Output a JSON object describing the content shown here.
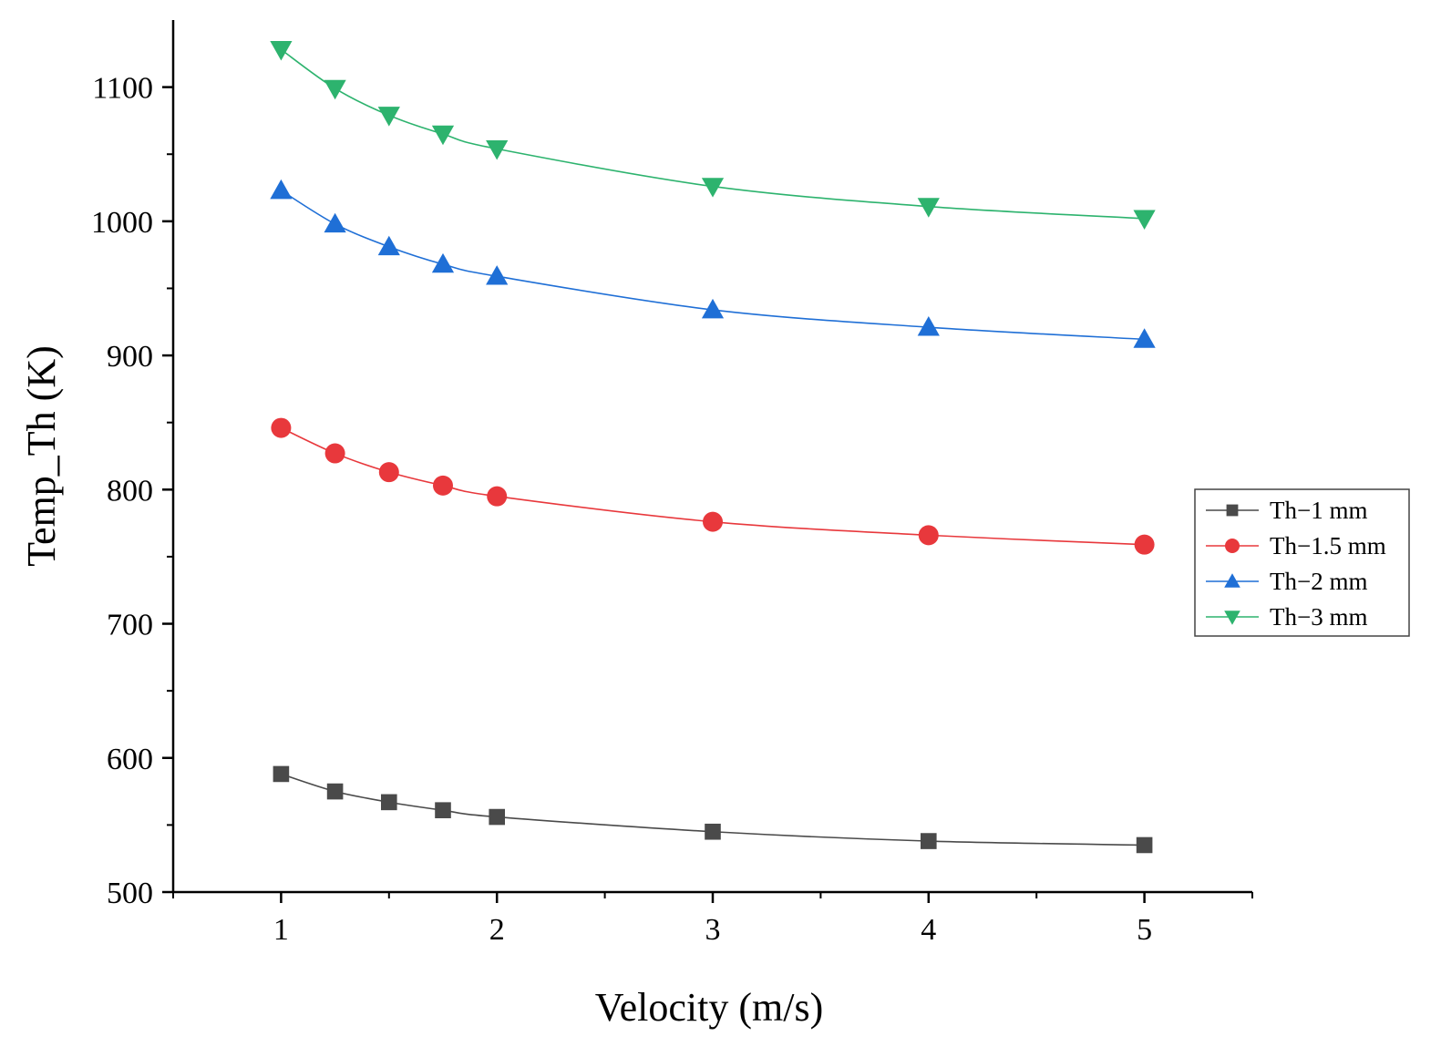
{
  "chart_data": {
    "type": "line",
    "title": "",
    "xlabel": "Velocity (m/s)",
    "ylabel": "Temp_Th (K)",
    "xlim": [
      0.5,
      5.5
    ],
    "ylim": [
      500,
      1150
    ],
    "x_ticks": [
      1,
      2,
      3,
      4,
      5
    ],
    "y_ticks": [
      500,
      600,
      700,
      800,
      900,
      1000,
      1100
    ],
    "grid": false,
    "legend_position": "right",
    "x": [
      1,
      1.25,
      1.5,
      1.75,
      2,
      3,
      4,
      5
    ],
    "series": [
      {
        "name": "Th−1 mm",
        "marker": "square",
        "color": "#4a4a4a",
        "values": [
          588,
          575,
          567,
          561,
          556,
          545,
          538,
          535
        ]
      },
      {
        "name": "Th−1.5 mm",
        "marker": "circle",
        "color": "#e8383c",
        "values": [
          846,
          827,
          813,
          803,
          795,
          776,
          766,
          759
        ]
      },
      {
        "name": "Th−2 mm",
        "marker": "triangle-up",
        "color": "#1f6fd6",
        "values": [
          1023,
          998,
          981,
          968,
          959,
          934,
          921,
          912
        ]
      },
      {
        "name": "Th−3 mm",
        "marker": "triangle-down",
        "color": "#2db36e",
        "values": [
          1128,
          1099,
          1079,
          1065,
          1054,
          1026,
          1011,
          1002
        ]
      }
    ]
  }
}
